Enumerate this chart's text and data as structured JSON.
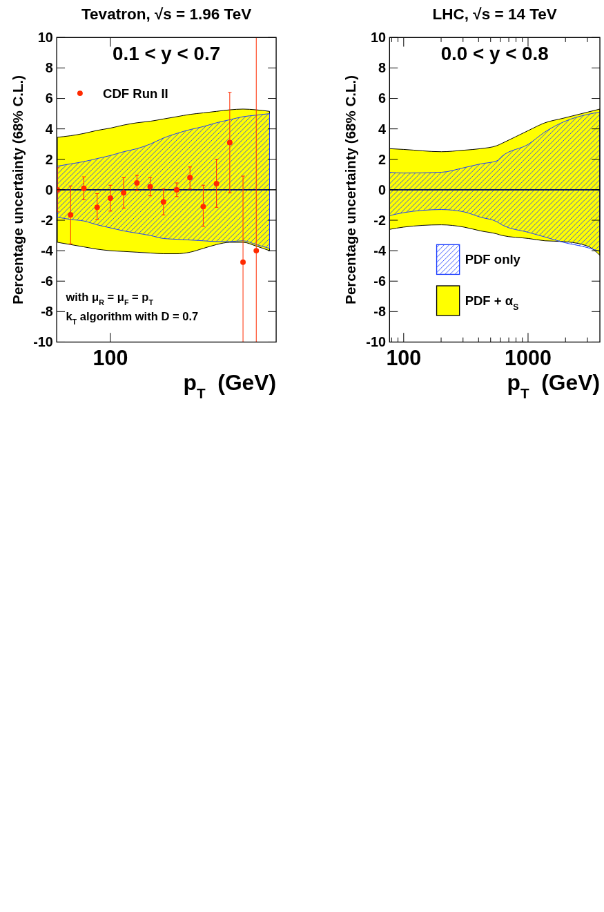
{
  "chart_data": [
    {
      "type": "area",
      "title": "Tevatron, √s = 1.96 TeV",
      "xlabel": "p$_{T}$  (GeV)",
      "ylabel": "Percentage uncertainty (68% C.L.)",
      "categories": [
        null,
        null,
        null,
        null,
        "100",
        null,
        null,
        null,
        null,
        null,
        null,
        null,
        null,
        null,
        null,
        null,
        null
      ],
      "ylim": [
        -10,
        10
      ],
      "yticks": [
        -10,
        -8,
        -6,
        -4,
        -2,
        0,
        2,
        4,
        6,
        8,
        10
      ],
      "legend": "top left",
      "annotations": [
        "0.1 < y < 0.7",
        "with μ$_{R}$ = μ$_{F}$ = p$_{T}$",
        "k$_{T}$ algorithm with D = 0.7"
      ],
      "ref_lines": [
        {
          "axis": "y",
          "value": 0,
          "color": "#000000"
        }
      ],
      "series": [
        {
          "color": "#1a3cff",
          "values": [
            1.55,
            1.7,
            1.85,
            2.05,
            2.25,
            2.5,
            2.7,
            3.0,
            3.4,
            3.7,
            3.95,
            4.15,
            4.4,
            4.6,
            4.8,
            4.9,
            5.0
          ]
        },
        {
          "color": "#1a3cff",
          "values": [
            -1.8,
            -1.95,
            -2.05,
            -2.3,
            -2.5,
            -2.7,
            -2.85,
            -3.0,
            -3.2,
            -3.25,
            -3.3,
            -3.35,
            -3.4,
            -3.4,
            -3.35,
            -3.6,
            -3.85
          ]
        },
        {
          "color": "#ffff00",
          "values": [
            3.45,
            3.55,
            3.7,
            3.9,
            4.05,
            4.25,
            4.4,
            4.5,
            4.65,
            4.8,
            4.95,
            5.05,
            5.15,
            5.25,
            5.3,
            5.25,
            5.15
          ]
        },
        {
          "color": "#ffff00",
          "values": [
            -3.45,
            -3.6,
            -3.75,
            -3.9,
            -4.0,
            -4.05,
            -4.1,
            -4.15,
            -4.2,
            -4.2,
            -4.1,
            -3.85,
            -3.6,
            -3.45,
            -3.45,
            -3.7,
            -4.0
          ]
        },
        {
          "type": "scatter",
          "name": "CDF Run II",
          "color": "#ff2a00",
          "marker": "circle",
          "values": [
            0,
            -1.65,
            0.1,
            -1.15,
            -0.55,
            -0.2,
            0.45,
            0.2,
            -0.8,
            0,
            0.8,
            -1.1,
            0.4,
            3.1,
            -4.75,
            -4.0,
            null
          ],
          "errors": [
            [
              -1.45,
              1.45
            ],
            [
              -3.55,
              0.25
            ],
            [
              -0.65,
              0.85
            ],
            [
              -1.95,
              -0.25
            ],
            [
              -1.4,
              0.3
            ],
            [
              -1.2,
              0.8
            ],
            [
              -0.05,
              0.95
            ],
            [
              -0.4,
              0.8
            ],
            [
              -1.65,
              0.05
            ],
            [
              -0.45,
              0.45
            ],
            [
              0.05,
              1.5
            ],
            [
              -2.4,
              0.3
            ],
            [
              -1.15,
              2.0
            ],
            [
              -0.2,
              6.4
            ],
            [
              -10,
              0.9
            ],
            [
              -10,
              10
            ],
            null
          ]
        }
      ]
    },
    {
      "type": "area",
      "title": "LHC, √s = 14 TeV",
      "xlabel": "p$_{T}$  (GeV)",
      "ylabel": "Percentage uncertainty (68% C.L.)",
      "log": "x",
      "xlim": [
        77,
        3780
      ],
      "xticks": [
        {
          "value": 80,
          "label": null
        },
        {
          "value": 90,
          "label": null
        },
        {
          "value": 100,
          "label": "100"
        },
        {
          "value": 200,
          "label": null
        },
        {
          "value": 300,
          "label": null
        },
        {
          "value": 400,
          "label": null
        },
        {
          "value": 500,
          "label": null
        },
        {
          "value": 600,
          "label": null
        },
        {
          "value": 700,
          "label": null
        },
        {
          "value": 800,
          "label": null
        },
        {
          "value": 900,
          "label": null
        },
        {
          "value": 1000,
          "label": "1000"
        },
        {
          "value": 2000,
          "label": null
        },
        {
          "value": 3000,
          "label": null
        }
      ],
      "ylim": [
        -10,
        10
      ],
      "yticks": [
        -10,
        -8,
        -6,
        -4,
        -2,
        0,
        2,
        4,
        6,
        8,
        10
      ],
      "legend": "bottom left",
      "annotations": [
        "0.0 < y < 0.8"
      ],
      "ref_lines": [
        {
          "axis": "y",
          "value": 0,
          "color": "#000000"
        }
      ],
      "series": [
        {
          "name": "PDF only",
          "color": "#1a3cff",
          "x": [
            77,
            100,
            201,
            305,
            415,
            562,
            617,
            1010,
            1368,
            1920,
            3010,
            3780
          ],
          "values": [
            1.15,
            1.1,
            1.15,
            1.45,
            1.7,
            1.9,
            2.2,
            3.0,
            3.8,
            4.45,
            4.95,
            5.1
          ]
        },
        {
          "color": "#1a3cff",
          "x": [
            77,
            100,
            201,
            305,
            415,
            562,
            617,
            1010,
            1368,
            1920,
            3010,
            3780
          ],
          "values": [
            -1.7,
            -1.5,
            -1.3,
            -1.45,
            -1.8,
            -2.1,
            -2.3,
            -2.8,
            -3.1,
            -3.45,
            -3.8,
            -4.05
          ]
        },
        {
          "name": "PDF + α$_{S}$",
          "color": "#ffff00",
          "x": [
            77,
            100,
            201,
            305,
            415,
            562,
            617,
            1010,
            1368,
            1920,
            3010,
            3780
          ],
          "values": [
            2.7,
            2.65,
            2.5,
            2.6,
            2.7,
            2.9,
            3.05,
            3.9,
            4.4,
            4.7,
            5.1,
            5.3
          ]
        },
        {
          "color": "#ffff00",
          "x": [
            77,
            100,
            201,
            305,
            415,
            562,
            617,
            1010,
            1368,
            1920,
            3010,
            3780
          ],
          "values": [
            -2.6,
            -2.45,
            -2.3,
            -2.45,
            -2.7,
            -2.9,
            -3.0,
            -3.2,
            -3.35,
            -3.4,
            -3.7,
            -4.3
          ]
        }
      ]
    }
  ]
}
